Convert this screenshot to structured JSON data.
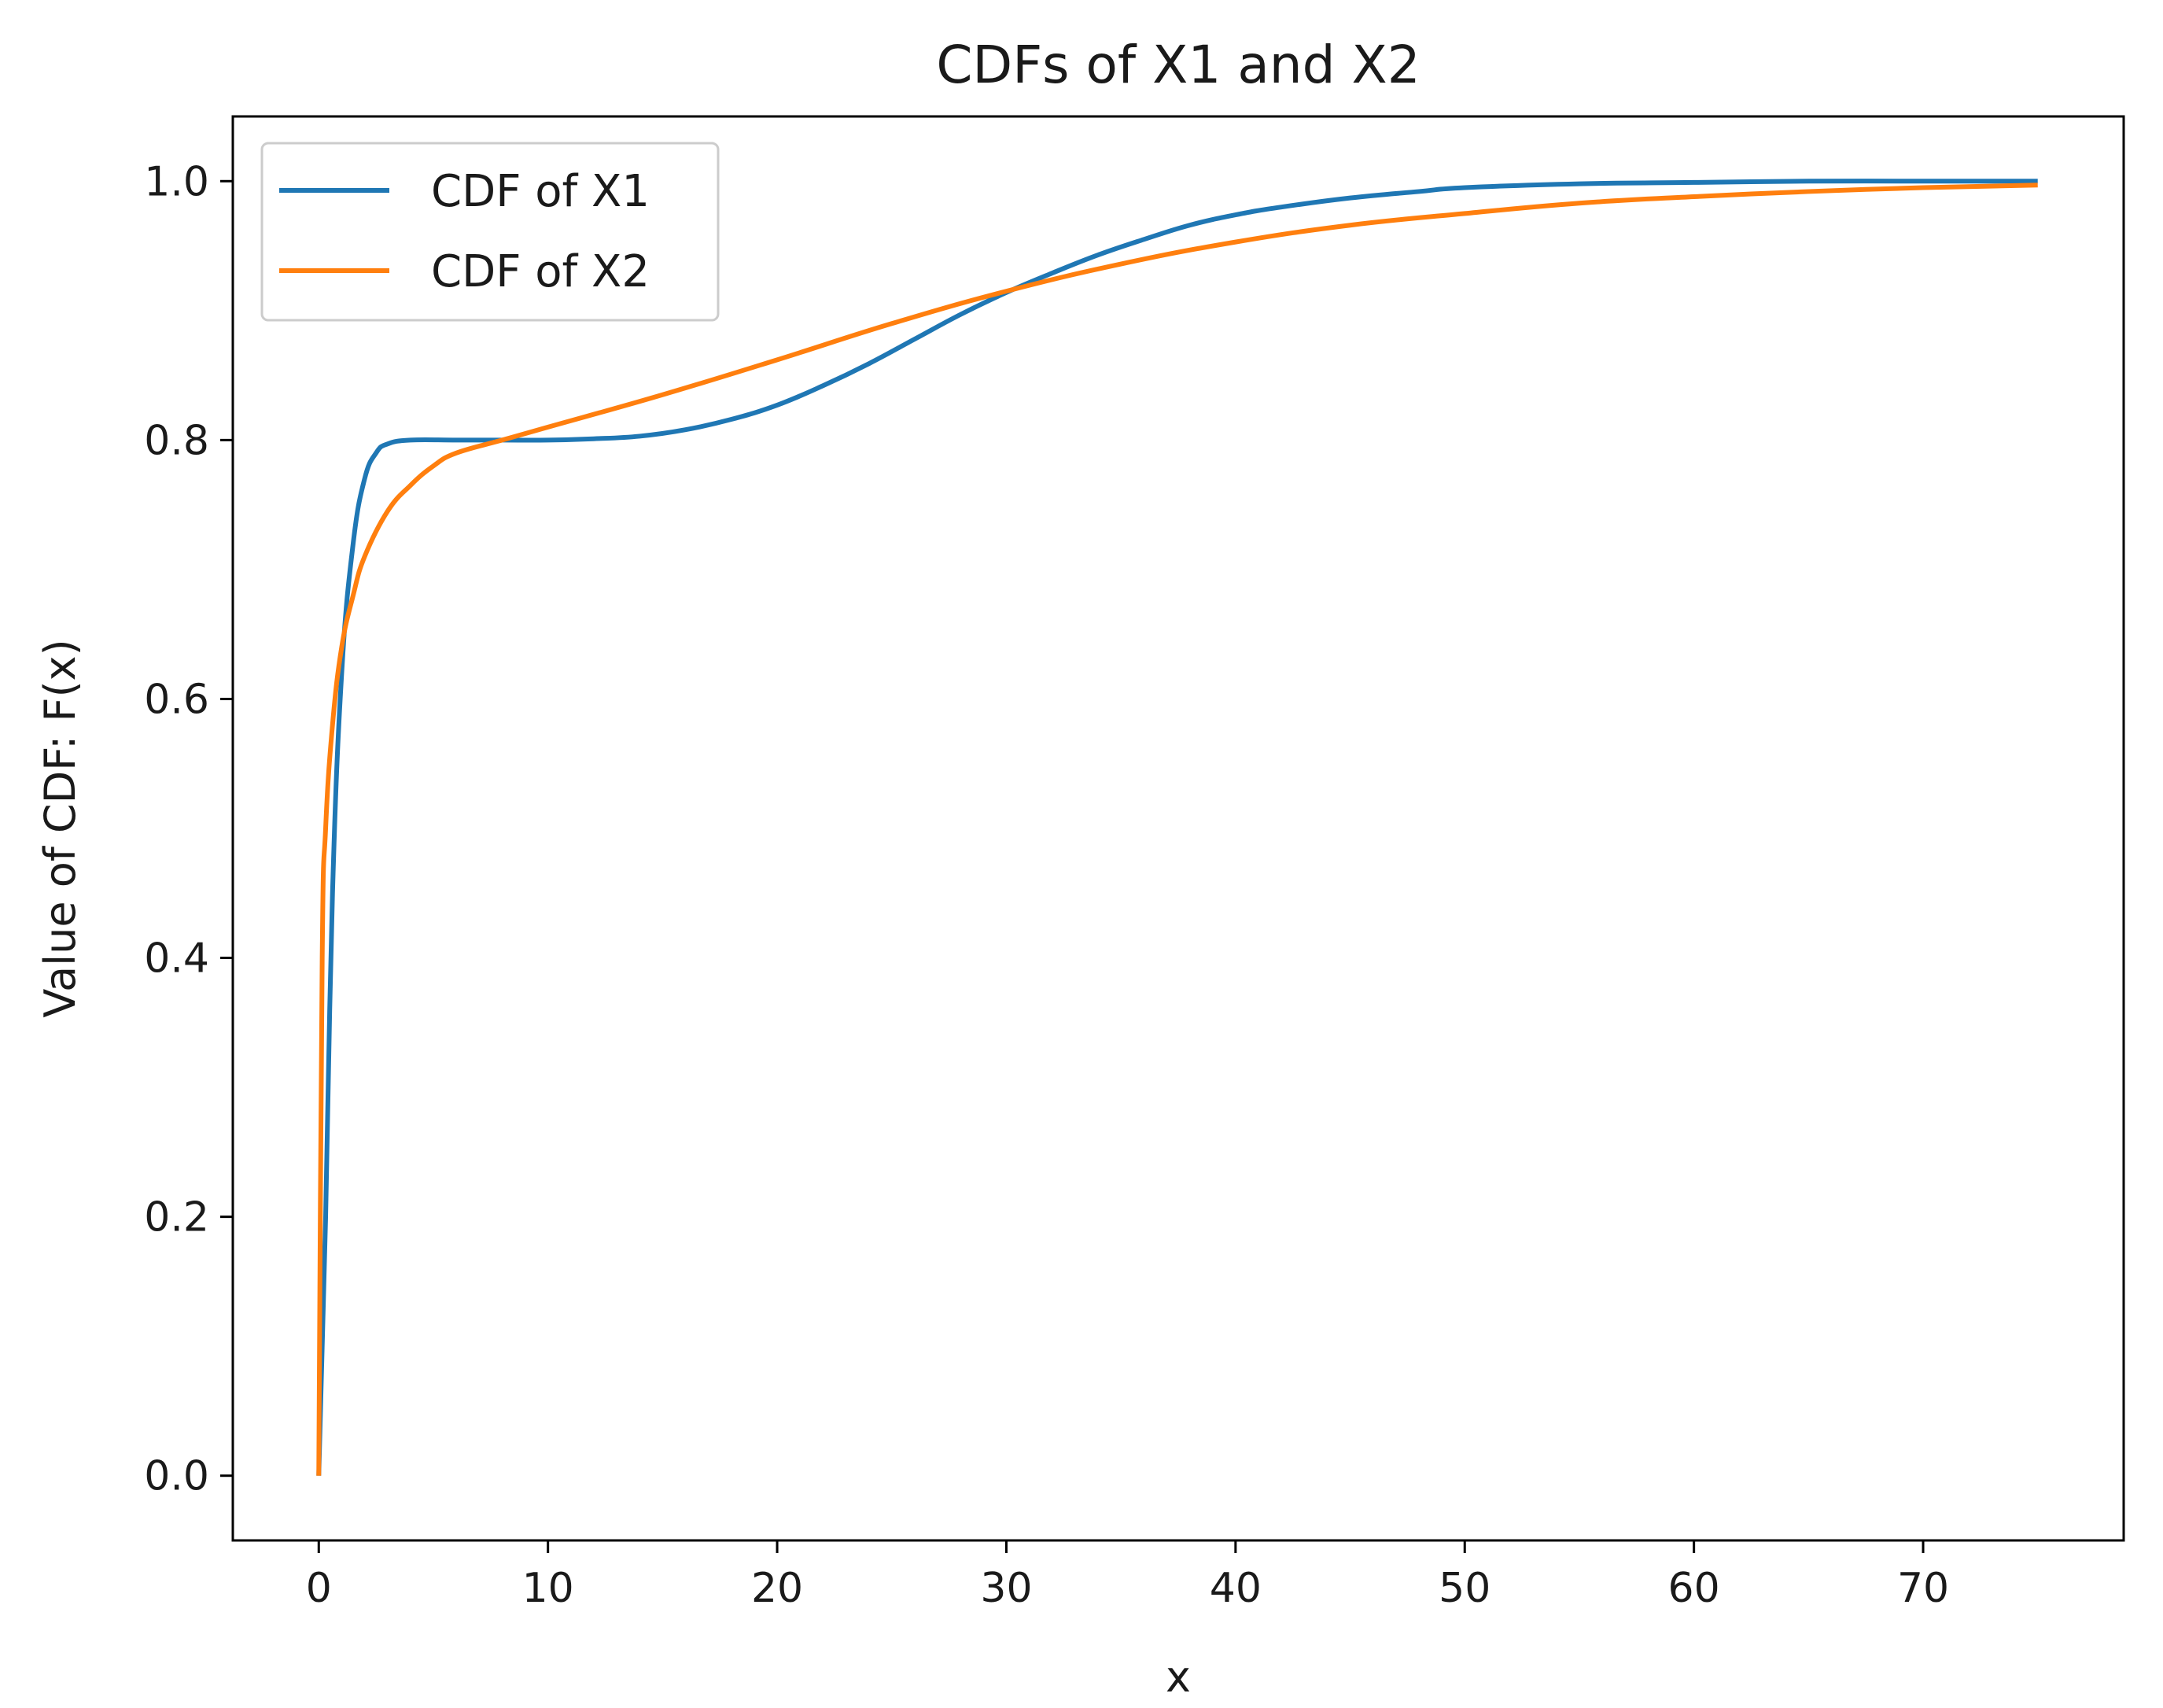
{
  "chart_data": {
    "type": "line",
    "title": "CDFs of X1 and X2",
    "xlabel": "x",
    "ylabel": "Value of CDF: F(x)",
    "xlim": [
      -3.75,
      78.75
    ],
    "ylim": [
      -0.05,
      1.05
    ],
    "xticks": [
      0,
      10,
      20,
      30,
      40,
      50,
      60,
      70
    ],
    "xtick_labels": [
      "0",
      "10",
      "20",
      "30",
      "40",
      "50",
      "60",
      "70"
    ],
    "yticks": [
      0.0,
      0.2,
      0.4,
      0.6,
      0.8,
      1.0
    ],
    "ytick_labels": [
      "0.0",
      "0.2",
      "0.4",
      "0.6",
      "0.8",
      "1.0"
    ],
    "grid": false,
    "legend_position": "top-left",
    "series": [
      {
        "name": "CDF of X1",
        "color": "#1f77b4",
        "x": [
          0,
          0.3,
          0.6,
          1,
          1.5,
          2,
          2.5,
          3,
          4,
          6,
          8,
          10,
          12,
          14,
          16,
          18,
          20,
          22,
          24,
          26,
          28,
          30,
          32,
          34,
          36,
          38,
          40,
          42,
          45,
          48,
          50,
          55,
          60,
          65,
          70,
          75
        ],
        "y": [
          0.0,
          0.2,
          0.45,
          0.62,
          0.72,
          0.77,
          0.79,
          0.797,
          0.8,
          0.8,
          0.8,
          0.8,
          0.801,
          0.803,
          0.808,
          0.816,
          0.827,
          0.842,
          0.859,
          0.878,
          0.897,
          0.914,
          0.929,
          0.943,
          0.955,
          0.966,
          0.974,
          0.98,
          0.987,
          0.992,
          0.995,
          0.998,
          0.999,
          1.0,
          1.0,
          1.0
        ]
      },
      {
        "name": "CDF of X2",
        "color": "#ff7f0e",
        "x": [
          0,
          0.15,
          0.3,
          0.6,
          1,
          1.5,
          2,
          3,
          4,
          5,
          6,
          8,
          10,
          15,
          20,
          25,
          30,
          35,
          40,
          45,
          50,
          55,
          60,
          65,
          70,
          75
        ],
        "y": [
          0.0,
          0.4,
          0.5,
          0.58,
          0.64,
          0.68,
          0.71,
          0.745,
          0.765,
          0.78,
          0.79,
          0.8,
          0.81,
          0.835,
          0.862,
          0.89,
          0.915,
          0.936,
          0.953,
          0.966,
          0.975,
          0.983,
          0.988,
          0.992,
          0.995,
          0.997
        ]
      }
    ]
  }
}
